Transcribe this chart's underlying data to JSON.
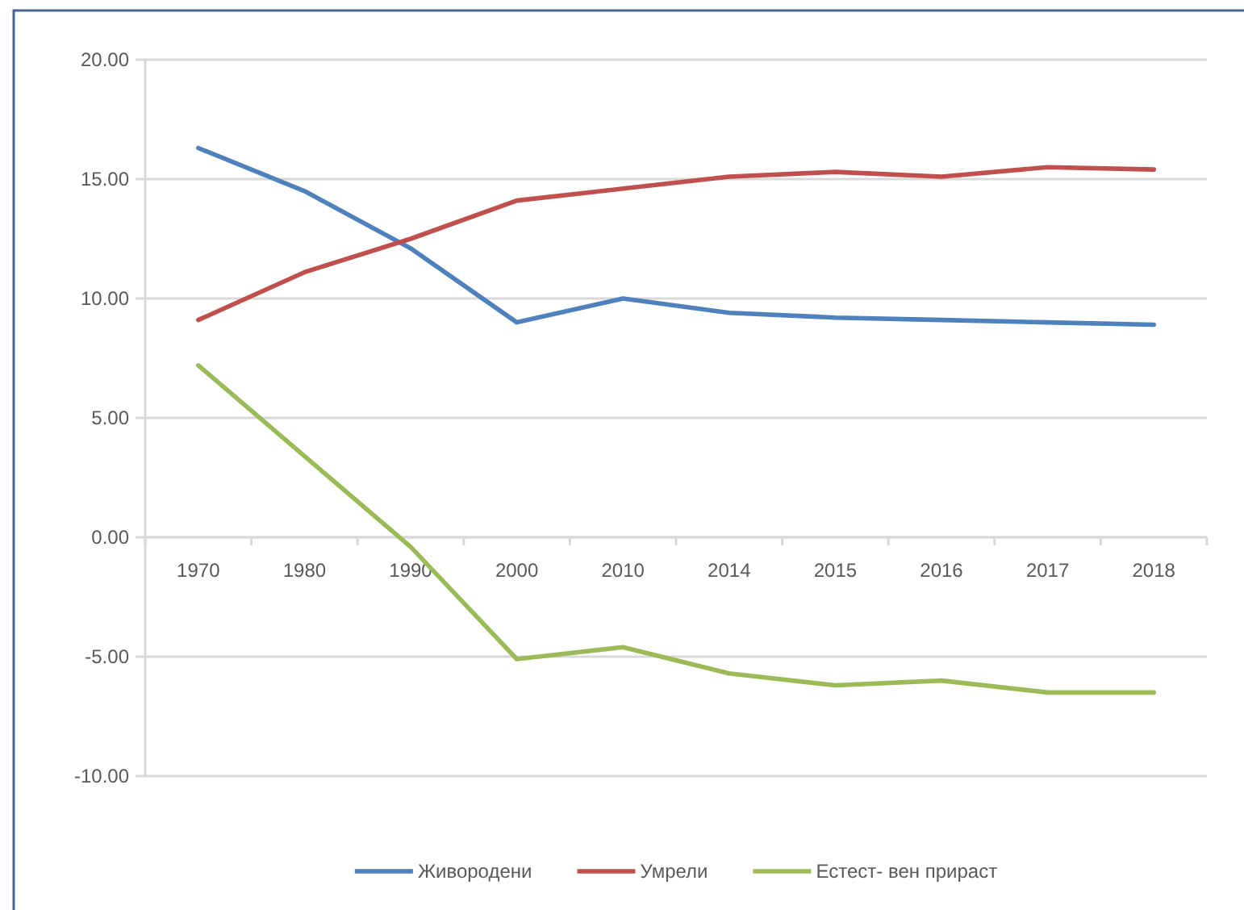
{
  "chart_data": {
    "type": "line",
    "categories": [
      "1970",
      "1980",
      "1990",
      "2000",
      "2010",
      "2014",
      "2015",
      "2016",
      "2017",
      "2018"
    ],
    "series": [
      {
        "name": "Живородени",
        "color": "#4f81bd",
        "values": [
          16.3,
          14.5,
          12.1,
          9.0,
          10.0,
          9.4,
          9.2,
          9.1,
          9.0,
          8.9
        ]
      },
      {
        "name": "Умрели",
        "color": "#c0504d",
        "values": [
          9.1,
          11.1,
          12.5,
          14.1,
          14.6,
          15.1,
          15.3,
          15.1,
          15.5,
          15.4
        ]
      },
      {
        "name": "Естест- вен прираст",
        "color": "#9bbb59",
        "values": [
          7.2,
          3.4,
          -0.4,
          -5.1,
          -4.6,
          -5.7,
          -6.2,
          -6.0,
          -6.5,
          -6.5
        ]
      }
    ],
    "ylim": [
      -10,
      20
    ],
    "yticks": [
      {
        "value": -10,
        "label": "-10.00"
      },
      {
        "value": -5,
        "label": "-5.00"
      },
      {
        "value": 0,
        "label": "0.00"
      },
      {
        "value": 5,
        "label": "5.00"
      },
      {
        "value": 10,
        "label": "10.00"
      },
      {
        "value": 15,
        "label": "15.00"
      },
      {
        "value": 20,
        "label": "20.00"
      }
    ],
    "grid": "y",
    "legend": "bottom",
    "marker": "none",
    "line_style": "solid"
  }
}
